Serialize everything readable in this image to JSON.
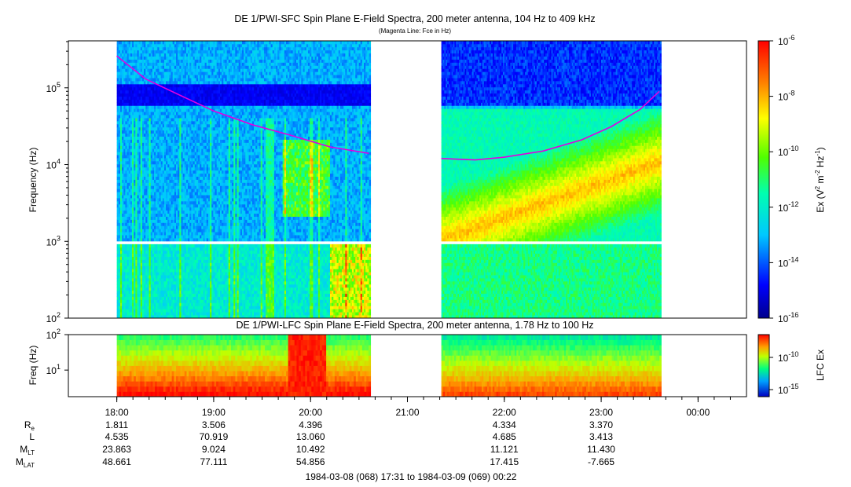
{
  "header": {
    "title": "DE 1/PWI-SFC  Spin Plane E-Field Spectra, 200 meter antenna, 104 Hz to 409 kHz",
    "subtitle": "(Magenta Line: Fce in Hz)"
  },
  "chart_data": [
    {
      "type": "heatmap",
      "title": "DE 1/PWI-SFC  Spin Plane E-Field Spectra, 200 meter antenna, 104 Hz to 409 kHz",
      "subtitle": "(Magenta Line: Fce in Hz)",
      "ylabel": "Frequency (Hz)",
      "yscale": "log",
      "ylim": [
        100,
        409000
      ],
      "y_ticks": [
        {
          "value": 100,
          "base": "10",
          "exp": "2"
        },
        {
          "value": 1000,
          "base": "10",
          "exp": "3"
        },
        {
          "value": 10000,
          "base": "10",
          "exp": "4"
        },
        {
          "value": 100000,
          "base": "10",
          "exp": "5"
        }
      ],
      "data_segments_hours": [
        [
          18.0,
          20.62
        ],
        [
          21.35,
          23.62
        ]
      ],
      "fce_line_hz": {
        "color": "#e000e0",
        "segment1": {
          "t": [
            18.0,
            18.3,
            18.7,
            19.0,
            19.4,
            19.8,
            20.2,
            20.6
          ],
          "f": [
            260000,
            130000,
            75000,
            50000,
            33000,
            24000,
            17000,
            14000
          ]
        },
        "segment2": {
          "t": [
            21.35,
            21.7,
            22.0,
            22.4,
            22.8,
            23.1,
            23.4,
            23.6
          ],
          "f": [
            12000,
            11500,
            12500,
            15000,
            21000,
            31000,
            52000,
            90000
          ]
        }
      },
      "colorbar": {
        "label_main": "Ex (V",
        "label_sup1": "2",
        "label_mid": " m",
        "label_sup2": "-2",
        "label_hz": " Hz",
        "label_sup3": "-1",
        "label_end": ")",
        "ticks": [
          {
            "base": "10",
            "exp": "-6"
          },
          {
            "base": "10",
            "exp": "-8"
          },
          {
            "base": "10",
            "exp": "-10"
          },
          {
            "base": "10",
            "exp": "-12"
          },
          {
            "base": "10",
            "exp": "-14"
          },
          {
            "base": "10",
            "exp": "-16"
          }
        ]
      },
      "colors": {
        "low": "#00008c",
        "mid": "#00ff80",
        "high": "#ff0000"
      }
    },
    {
      "type": "heatmap",
      "title": "DE 1/PWI-LFC  Spin Plane E-Field Spectra, 200 meter antenna, 1.78 Hz to 100 Hz",
      "ylabel": "Freq (Hz)",
      "yscale": "log",
      "ylim": [
        1.78,
        100
      ],
      "y_ticks": [
        {
          "value": 10,
          "base": "10",
          "exp": "1"
        },
        {
          "value": 100,
          "base": "10",
          "exp": "2"
        }
      ],
      "colorbar": {
        "label": "LFC Ex",
        "ticks": [
          {
            "base": "10",
            "exp": "-10"
          },
          {
            "base": "10",
            "exp": "-15"
          }
        ]
      }
    }
  ],
  "x_axis": {
    "ticks": [
      "18:00",
      "19:00",
      "20:00",
      "21:00",
      "22:00",
      "23:00",
      "00:00"
    ],
    "tick_hours": [
      18,
      19,
      20,
      21,
      22,
      23,
      24
    ]
  },
  "ephemeris": {
    "labels": [
      {
        "main": "R",
        "sub": "e"
      },
      {
        "main": "L",
        "sub": ""
      },
      {
        "main": "M",
        "sub": "LT"
      },
      {
        "main": "M",
        "sub": "LAT"
      }
    ],
    "columns": [
      {
        "tick": "18:00",
        "values": [
          "1.811",
          "4.535",
          "23.863",
          "48.661"
        ]
      },
      {
        "tick": "19:00",
        "values": [
          "3.506",
          "70.919",
          "9.024",
          "77.111"
        ]
      },
      {
        "tick": "20:00",
        "values": [
          "4.396",
          "13.060",
          "10.492",
          "54.856"
        ]
      },
      {
        "tick": "22:00",
        "values": [
          "4.334",
          "4.685",
          "11.121",
          "17.415"
        ]
      },
      {
        "tick": "23:00",
        "values": [
          "3.370",
          "3.413",
          "11.430",
          "-7.665"
        ]
      }
    ]
  },
  "footer": {
    "range": "1984-03-08 (068) 17:31 to 1984-03-09 (069) 00:22"
  }
}
